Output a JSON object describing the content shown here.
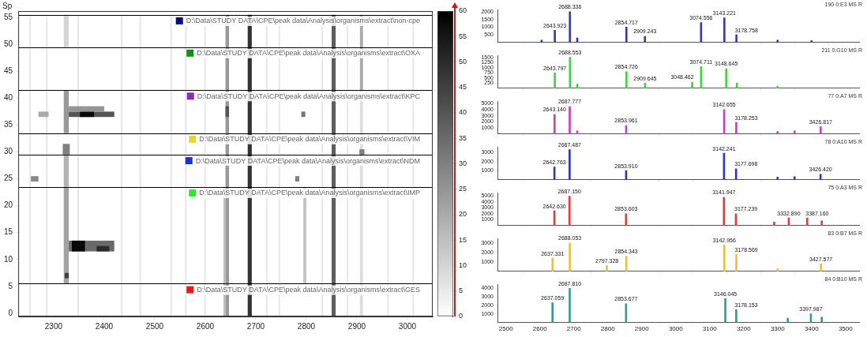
{
  "chart_data": [
    {
      "type": "heatmap",
      "ylabel": "Sp",
      "xlim": [
        2230,
        3050
      ],
      "xticks": [
        2300,
        2400,
        2500,
        2600,
        2700,
        2800,
        2900,
        3000
      ],
      "ylim": [
        -0.6,
        56.2
      ],
      "yticks": [
        0,
        5,
        10,
        15,
        20,
        25,
        30,
        35,
        40,
        45,
        50,
        55
      ],
      "clim": [
        0,
        60
      ],
      "cticks": [
        0,
        5,
        10,
        15,
        20,
        25,
        30,
        35,
        40,
        45,
        50,
        55,
        60
      ],
      "groups": [
        {
          "label": "D:\\Data\\STUDY DATA\\CPE\\peak data\\Analysis\\organisms\\extract\\non-cpe",
          "color": "#0a0a80",
          "spectra": [
            50,
            55
          ]
        },
        {
          "label": "D:\\Data\\STUDY DATA\\CPE\\peak data\\Analysis\\organisms\\extract\\OXA",
          "color": "#1a8a1a",
          "spectra": [
            42,
            49
          ]
        },
        {
          "label": "D:\\Data\\STUDY DATA\\CPE\\peak data\\Analysis\\organisms\\extract\\KPC",
          "color": "#8a2bc2",
          "spectra": [
            34,
            41
          ]
        },
        {
          "label": "D:\\Data\\STUDY DATA\\CPE\\peak data\\Analysis\\organisms\\extract\\VIM",
          "color": "#e6d82a",
          "spectra": [
            30,
            33
          ]
        },
        {
          "label": "D:\\Data\\STUDY DATA\\CPE\\peak data\\Analysis\\organisms\\extract\\NDM",
          "color": "#1a2ee6",
          "spectra": [
            24,
            29
          ]
        },
        {
          "label": "D:\\Data\\STUDY DATA\\CPE\\peak data\\Analysis\\organisms\\extract\\IMP",
          "color": "#2ee62e",
          "spectra": [
            6,
            23
          ]
        },
        {
          "label": "D:\\Data\\STUDY DATA\\CPE\\peak data\\Analysis\\organisms\\extract\\GES",
          "color": "#e61a1a",
          "spectra": [
            0,
            5
          ]
        }
      ],
      "cells": [
        {
          "mz": [
            2252,
            2255
          ],
          "spectra": [
            0,
            55
          ],
          "value": 6
        },
        {
          "mz": [
            2285,
            2288
          ],
          "spectra": [
            0,
            55
          ],
          "value": 6
        },
        {
          "mz": [
            2347,
            2350
          ],
          "spectra": [
            0,
            55
          ],
          "value": 6
        },
        {
          "mz": [
            2433,
            2436
          ],
          "spectra": [
            0,
            55
          ],
          "value": 6
        },
        {
          "mz": [
            2470,
            2473
          ],
          "spectra": [
            0,
            55
          ],
          "value": 6
        },
        {
          "mz": [
            2531,
            2534
          ],
          "spectra": [
            0,
            55
          ],
          "value": 6
        },
        {
          "mz": [
            2560,
            2563
          ],
          "spectra": [
            0,
            55
          ],
          "value": 6
        },
        {
          "mz": [
            2598,
            2601
          ],
          "spectra": [
            0,
            55
          ],
          "value": 6
        },
        {
          "mz": [
            2720,
            2723
          ],
          "spectra": [
            0,
            55
          ],
          "value": 6
        },
        {
          "mz": [
            2745,
            2748
          ],
          "spectra": [
            0,
            55
          ],
          "value": 6
        },
        {
          "mz": [
            2830,
            2833
          ],
          "spectra": [
            0,
            55
          ],
          "value": 6
        },
        {
          "mz": [
            2880,
            2883
          ],
          "spectra": [
            0,
            55
          ],
          "value": 6
        },
        {
          "mz": [
            2960,
            2963
          ],
          "spectra": [
            0,
            55
          ],
          "value": 6
        },
        {
          "mz": [
            3010,
            3013
          ],
          "spectra": [
            0,
            55
          ],
          "value": 6
        },
        {
          "mz": [
            2640,
            2647
          ],
          "spectra": [
            0,
            55
          ],
          "value": 24
        },
        {
          "mz": [
            2636,
            2640
          ],
          "spectra": [
            0,
            23
          ],
          "value": 16
        },
        {
          "mz": [
            2684,
            2692
          ],
          "spectra": [
            0,
            55
          ],
          "value": 48
        },
        {
          "mz": [
            2850,
            2858
          ],
          "spectra": [
            0,
            55
          ],
          "value": 38
        },
        {
          "mz": [
            2906,
            2912
          ],
          "spectra": [
            0,
            41
          ],
          "value": 8
        },
        {
          "mz": [
            2906,
            2912
          ],
          "spectra": [
            42,
            55
          ],
          "value": 20
        },
        {
          "mz": [
            2794,
            2800
          ],
          "spectra": [
            6,
            23
          ],
          "value": 14
        },
        {
          "mz": [
            2320,
            2330
          ],
          "spectra": [
            6,
            23
          ],
          "value": 22
        },
        {
          "mz": [
            2320,
            2330
          ],
          "spectra": [
            24,
            29
          ],
          "value": 18
        },
        {
          "mz": [
            2318,
            2332
          ],
          "spectra": [
            30,
            31
          ],
          "value": 30
        },
        {
          "mz": [
            2320,
            2330
          ],
          "spectra": [
            34,
            41
          ],
          "value": 24
        },
        {
          "mz": [
            2320,
            2330
          ],
          "spectra": [
            50,
            55
          ],
          "value": 10
        },
        {
          "mz": [
            2322,
            2330
          ],
          "spectra": [
            7,
            7
          ],
          "value": 45
        },
        {
          "mz": [
            2330,
            2420
          ],
          "spectra": [
            12,
            13
          ],
          "value": 35
        },
        {
          "mz": [
            2336,
            2362
          ],
          "spectra": [
            12,
            13
          ],
          "value": 58
        },
        {
          "mz": [
            2385,
            2410
          ],
          "spectra": [
            12,
            12
          ],
          "value": 50
        },
        {
          "mz": [
            2330,
            2420
          ],
          "spectra": [
            37,
            37
          ],
          "value": 40
        },
        {
          "mz": [
            2352,
            2380
          ],
          "spectra": [
            37,
            37
          ],
          "value": 58
        },
        {
          "mz": [
            2330,
            2400
          ],
          "spectra": [
            38,
            38
          ],
          "value": 25
        },
        {
          "mz": [
            2270,
            2290
          ],
          "spectra": [
            37,
            37
          ],
          "value": 20
        },
        {
          "mz": [
            2255,
            2270
          ],
          "spectra": [
            25,
            25
          ],
          "value": 28
        },
        {
          "mz": [
            2778,
            2786
          ],
          "spectra": [
            25,
            25
          ],
          "value": 30
        },
        {
          "mz": [
            2790,
            2798
          ],
          "spectra": [
            37,
            37
          ],
          "value": 32
        },
        {
          "mz": [
            2905,
            2915
          ],
          "spectra": [
            30,
            30
          ],
          "value": 30
        },
        {
          "mz": [
            2640,
            2647
          ],
          "spectra": [
            37,
            38
          ],
          "value": 40
        }
      ]
    },
    {
      "type": "bar",
      "title": "190 0:E3 MS R",
      "color": "#3a3aa8",
      "tick_labels": "y",
      "xlim": [
        2475,
        3540
      ],
      "xticks": [
        2500,
        2600,
        2700,
        2800,
        2900,
        3000,
        3100,
        3200,
        3300,
        3400,
        3500
      ],
      "ylim": [
        0,
        2150
      ],
      "yticks": [
        500,
        1000,
        1500,
        2000
      ],
      "x": [
        2605,
        2643.923,
        2688.336,
        2710,
        2854.717,
        2909.243,
        3074.556,
        3143.221,
        3178.758,
        3300,
        3400
      ],
      "values": [
        150,
        800,
        2000,
        300,
        1000,
        400,
        1300,
        1600,
        500,
        150,
        120
      ],
      "annotations": [
        null,
        "2643.923",
        "2688.336",
        null,
        "2854.717",
        "2909.243",
        "3074.556",
        "3143.221",
        "3178.758",
        null,
        null
      ]
    },
    {
      "type": "bar",
      "title": "211 0:G10 MS R",
      "color": "#3ed63e",
      "tick_labels": "y",
      "xlim": [
        2475,
        3540
      ],
      "xticks": [
        2500,
        2600,
        2700,
        2800,
        2900,
        3000,
        3100,
        3200,
        3300,
        3400,
        3500
      ],
      "ylim": [
        0,
        1600
      ],
      "yticks": [
        250,
        500,
        750,
        1000,
        1250,
        1500
      ],
      "x": [
        2643.797,
        2688.553,
        2710,
        2854.726,
        2909.645,
        3048.462,
        3074.711,
        3148.645,
        3180,
        3300
      ],
      "values": [
        750,
        1500,
        200,
        800,
        250,
        300,
        1050,
        950,
        250,
        100
      ],
      "annotations": [
        "2643.797",
        "2688.553",
        null,
        "2854.726",
        "2909.645",
        "3048.462",
        "3074.711",
        "3148.645",
        null,
        null
      ]
    },
    {
      "type": "bar",
      "title": "77 0:A7 MS R",
      "color": "#c83cc8",
      "tick_labels": "y",
      "xlim": [
        2475,
        3540
      ],
      "xticks": [
        2500,
        2600,
        2700,
        2800,
        2900,
        3000,
        3100,
        3200,
        3300,
        3400,
        3500
      ],
      "ylim": [
        0,
        5400
      ],
      "yticks": [
        1000,
        2000,
        3000,
        4000,
        5000
      ],
      "x": [
        2643.14,
        2687.777,
        2710,
        2853.961,
        3142.655,
        3178.253,
        3300,
        3350,
        3426.817
      ],
      "values": [
        3200,
        4500,
        500,
        1400,
        4000,
        1900,
        400,
        500,
        1200
      ],
      "annotations": [
        "2643.140",
        "2687.777",
        null,
        "2853.961",
        "3142.655",
        "3178.253",
        null,
        null,
        "3426.817"
      ]
    },
    {
      "type": "bar",
      "title": "78 0:A10 MS R",
      "color": "#3434c0",
      "tick_labels": "y",
      "xlim": [
        2475,
        3540
      ],
      "xticks": [
        2500,
        2600,
        2700,
        2800,
        2900,
        3000,
        3100,
        3200,
        3300,
        3400,
        3500
      ],
      "ylim": [
        0,
        3600
      ],
      "yticks": [
        1000,
        2000,
        3000
      ],
      "x": [
        2642.763,
        2687.487,
        2853.91,
        3142.241,
        3177.698,
        3300,
        3350,
        3426.42
      ],
      "values": [
        1400,
        3300,
        1000,
        2900,
        1200,
        300,
        350,
        600
      ],
      "annotations": [
        "2642.763",
        "2687.487",
        "2853.910",
        "3142.241",
        "3177.698",
        null,
        null,
        "3426.420"
      ]
    },
    {
      "type": "bar",
      "title": "75 0:A3 MS R",
      "color": "#e83a3a",
      "tick_labels": "y",
      "xlim": [
        2475,
        3540
      ],
      "xticks": [
        2500,
        2600,
        2700,
        2800,
        2900,
        3000,
        3100,
        3200,
        3300,
        3400,
        3500
      ],
      "ylim": [
        0,
        5600
      ],
      "yticks": [
        1000,
        2000,
        3000,
        4000,
        5000
      ],
      "x": [
        2642.63,
        2687.15,
        2853.603,
        3141.947,
        3177.239,
        3290,
        3332.89,
        3387.16,
        3430
      ],
      "values": [
        2500,
        5000,
        2000,
        4800,
        2000,
        600,
        1300,
        1300,
        800
      ],
      "annotations": [
        "2642.630",
        "2687.150",
        "2853.603",
        "3141.947",
        "3177.239",
        null,
        "3332.890",
        "3387.160",
        null
      ]
    },
    {
      "type": "bar",
      "title": "83 0:B7 MS R",
      "color": "#e8c23a",
      "tick_labels": "y",
      "xlim": [
        2475,
        3540
      ],
      "xticks": [
        2500,
        2600,
        2700,
        2800,
        2900,
        3000,
        3100,
        3200,
        3300,
        3400,
        3500
      ],
      "ylim": [
        0,
        3500
      ],
      "yticks": [
        1000,
        2000,
        3000
      ],
      "x": [
        2637.331,
        2688.053,
        2797.328,
        2854.343,
        3142.956,
        3178.569,
        3300,
        3427.577
      ],
      "values": [
        1400,
        3000,
        600,
        1600,
        2800,
        1800,
        300,
        800
      ],
      "annotations": [
        "2637.331",
        "2688.053",
        "2797.328",
        "2854.343",
        "3142.956",
        "3178.569",
        null,
        "3427.577"
      ]
    },
    {
      "type": "bar",
      "title": "84 0:B10 MS R",
      "color": "#2ea090",
      "xlim": [
        2475,
        3540
      ],
      "xticks": [
        2500,
        2600,
        2700,
        2800,
        2900,
        3000,
        3100,
        3200,
        3300,
        3400,
        3500
      ],
      "ylim": [
        0,
        4500
      ],
      "yticks": [
        1000,
        2000,
        3000,
        4000
      ],
      "x": [
        2637.059,
        2687.81,
        2853.677,
        3146.045,
        3178.153,
        3330,
        3397.987,
        3430
      ],
      "values": [
        2300,
        4000,
        2200,
        2800,
        1500,
        500,
        1000,
        600
      ],
      "annotations": [
        "2637.059",
        "2687.810",
        "2853.677",
        "3146.045",
        "3178.153",
        null,
        "3397.987",
        null
      ]
    }
  ]
}
